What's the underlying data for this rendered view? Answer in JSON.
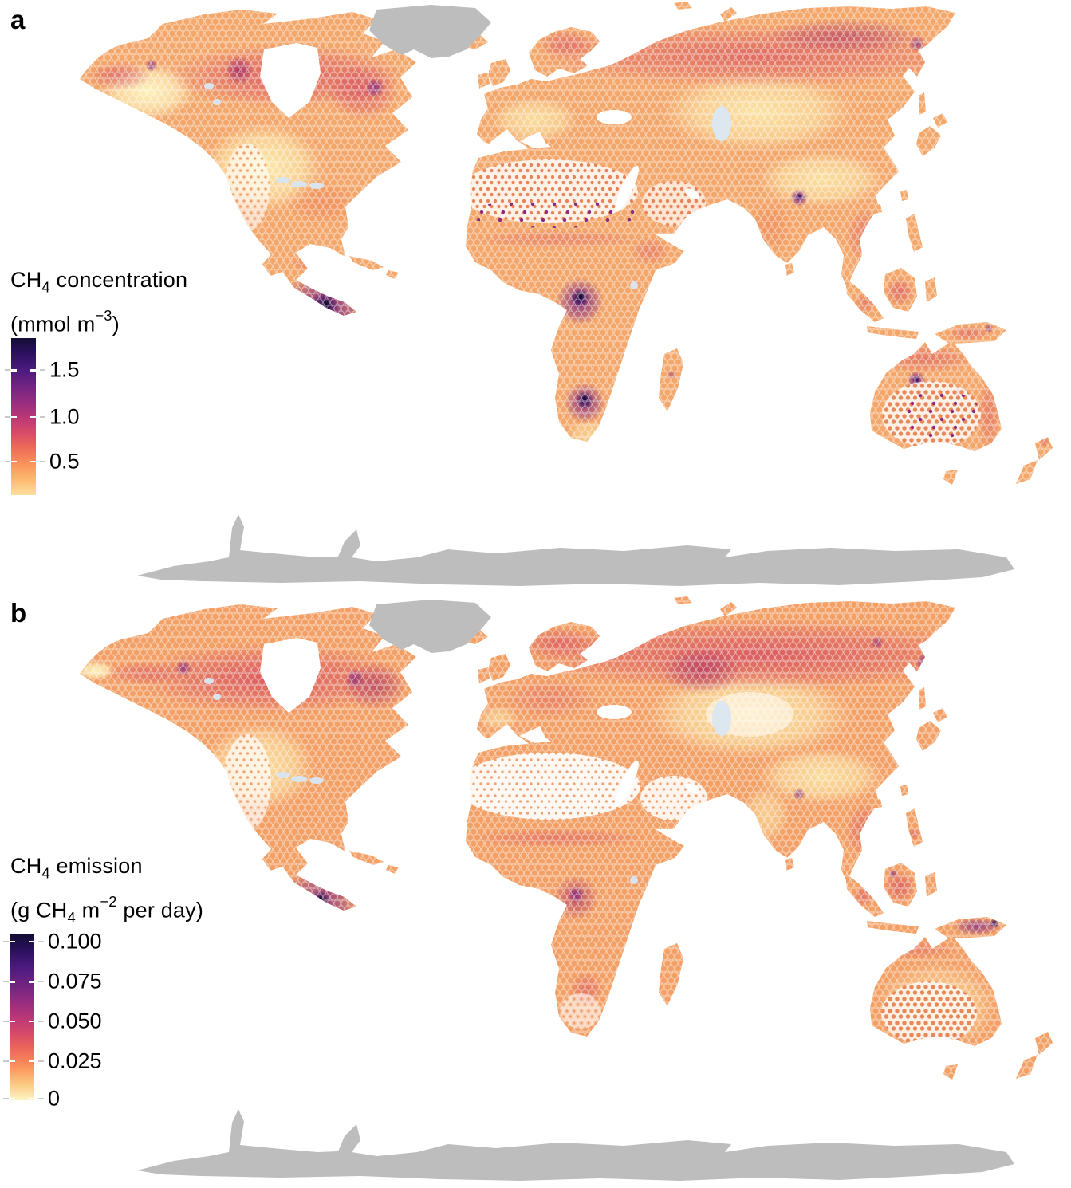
{
  "figure_type": "two-panel hexbin world map figure",
  "colors": {
    "ocean": "#ffffff",
    "no_data_land": "#bdbdbd",
    "lake": "#d9e4ee",
    "land_base": "#f4a76b",
    "hotspot_dark": "#0e0827",
    "hotspot_purple": "#7c2483",
    "boreal_red": "#cf3f5f"
  },
  "panels": [
    {
      "label": "a",
      "legend": {
        "title": [
          "CH",
          "4",
          " concentration"
        ],
        "units": [
          "(mmol m",
          "−3",
          ")"
        ],
        "ticks": [
          {
            "label": "1.5",
            "pct": 20.5
          },
          {
            "label": "1.0",
            "pct": 50.2
          },
          {
            "label": "0.5",
            "pct": 78.5
          }
        ],
        "gradient": [
          "#130d35",
          "#2c1160",
          "#4c1a80",
          "#6f2382",
          "#942c80",
          "#b93778",
          "#d84a68",
          "#ee6b59",
          "#fa935b",
          "#fcb96f",
          "#fddfa0"
        ]
      }
    },
    {
      "label": "b",
      "legend": {
        "title": [
          "CH",
          "4",
          " emission"
        ],
        "units": [
          "(g CH",
          "4",
          " m",
          "−2",
          " per day)"
        ],
        "ticks": [
          {
            "label": "0.100",
            "pct": 4.3
          },
          {
            "label": "0.075",
            "pct": 28.5
          },
          {
            "label": "0.050",
            "pct": 52.2
          },
          {
            "label": "0.025",
            "pct": 76.3
          },
          {
            "label": "0",
            "pct": 99.0
          }
        ],
        "gradient": [
          "#130d35",
          "#2c1160",
          "#4c1a80",
          "#6f2382",
          "#942c80",
          "#b93778",
          "#d84a68",
          "#ee6b59",
          "#fa935b",
          "#fcc97f",
          "#fdf5c6"
        ]
      }
    }
  ],
  "chart_data": [
    {
      "type": "heatmap",
      "subtype": "hexbin world map",
      "panel": "a",
      "title": "CH4 concentration",
      "units": "mmol m−3",
      "colormap": "magma (light yellow = low, black-purple = high)",
      "colorbar_ticks": [
        0.5,
        1.0,
        1.5
      ],
      "colorbar_range_approx": [
        0.15,
        1.85
      ],
      "legend_position": "left",
      "projection": "Robinson-like global projection",
      "no_data_regions": [
        "Greenland",
        "Antarctica"
      ],
      "high_value_regions": [
        "western Amazon basin (darkest, ~1.8 mmol m−3)",
        "Congo basin (~1.5)",
        "Okavango / southern Africa wetlands (~1.5)",
        "northern Australia interior spots (~1.3)",
        "Ganges–Brahmaputra delta, Bangladesh (~1.2)",
        "boreal Canada belt and Hudson Bay lowlands (~0.9)",
        "boreal Siberia belt (~0.9)",
        "scattered Sahara cells (~1.0–1.5, sparse small dots)"
      ],
      "low_value_regions": [
        "central / western United States (~0.3)",
        "central Asia and Tibetan plateau (~0.3)",
        "central Europe (~0.4)",
        "Andes strip and Patagonia",
        "Alaska interior"
      ]
    },
    {
      "type": "heatmap",
      "subtype": "hexbin world map",
      "panel": "b",
      "title": "CH4 emission",
      "units": "g CH4 m−2 per day",
      "colormap": "magma (light yellow = 0, black-purple = 0.100)",
      "colorbar_ticks": [
        0,
        0.025,
        0.05,
        0.075,
        0.1
      ],
      "colorbar_range_approx": [
        0,
        0.105
      ],
      "legend_position": "left",
      "projection": "Robinson-like global projection",
      "no_data_regions": [
        "Greenland",
        "Antarctica"
      ],
      "high_value_regions": [
        "western Amazon basin (darkest, ~0.1 g CH4 m−2 per day)",
        "Pantanal spot (~0.08)",
        "boreal Canada / Hudson Bay lowlands belt (~0.06)",
        "eastern Canada (~0.06)",
        "boreal western Siberia belt (~0.06)",
        "Scandinavia (~0.05)",
        "Congo basin (~0.05)",
        "New Guinea (~0.08)",
        "Borneo and Sumatra peatlands (~0.05)"
      ],
      "low_value_regions": [
        "Sahara and Arabia (near 0)",
        "central / western United States (near 0)",
        "central Asia (near 0)",
        "Australian interior (near 0, sparse dots)",
        "Tibetan plateau",
        "Kalahari and Patagonia"
      ]
    }
  ]
}
